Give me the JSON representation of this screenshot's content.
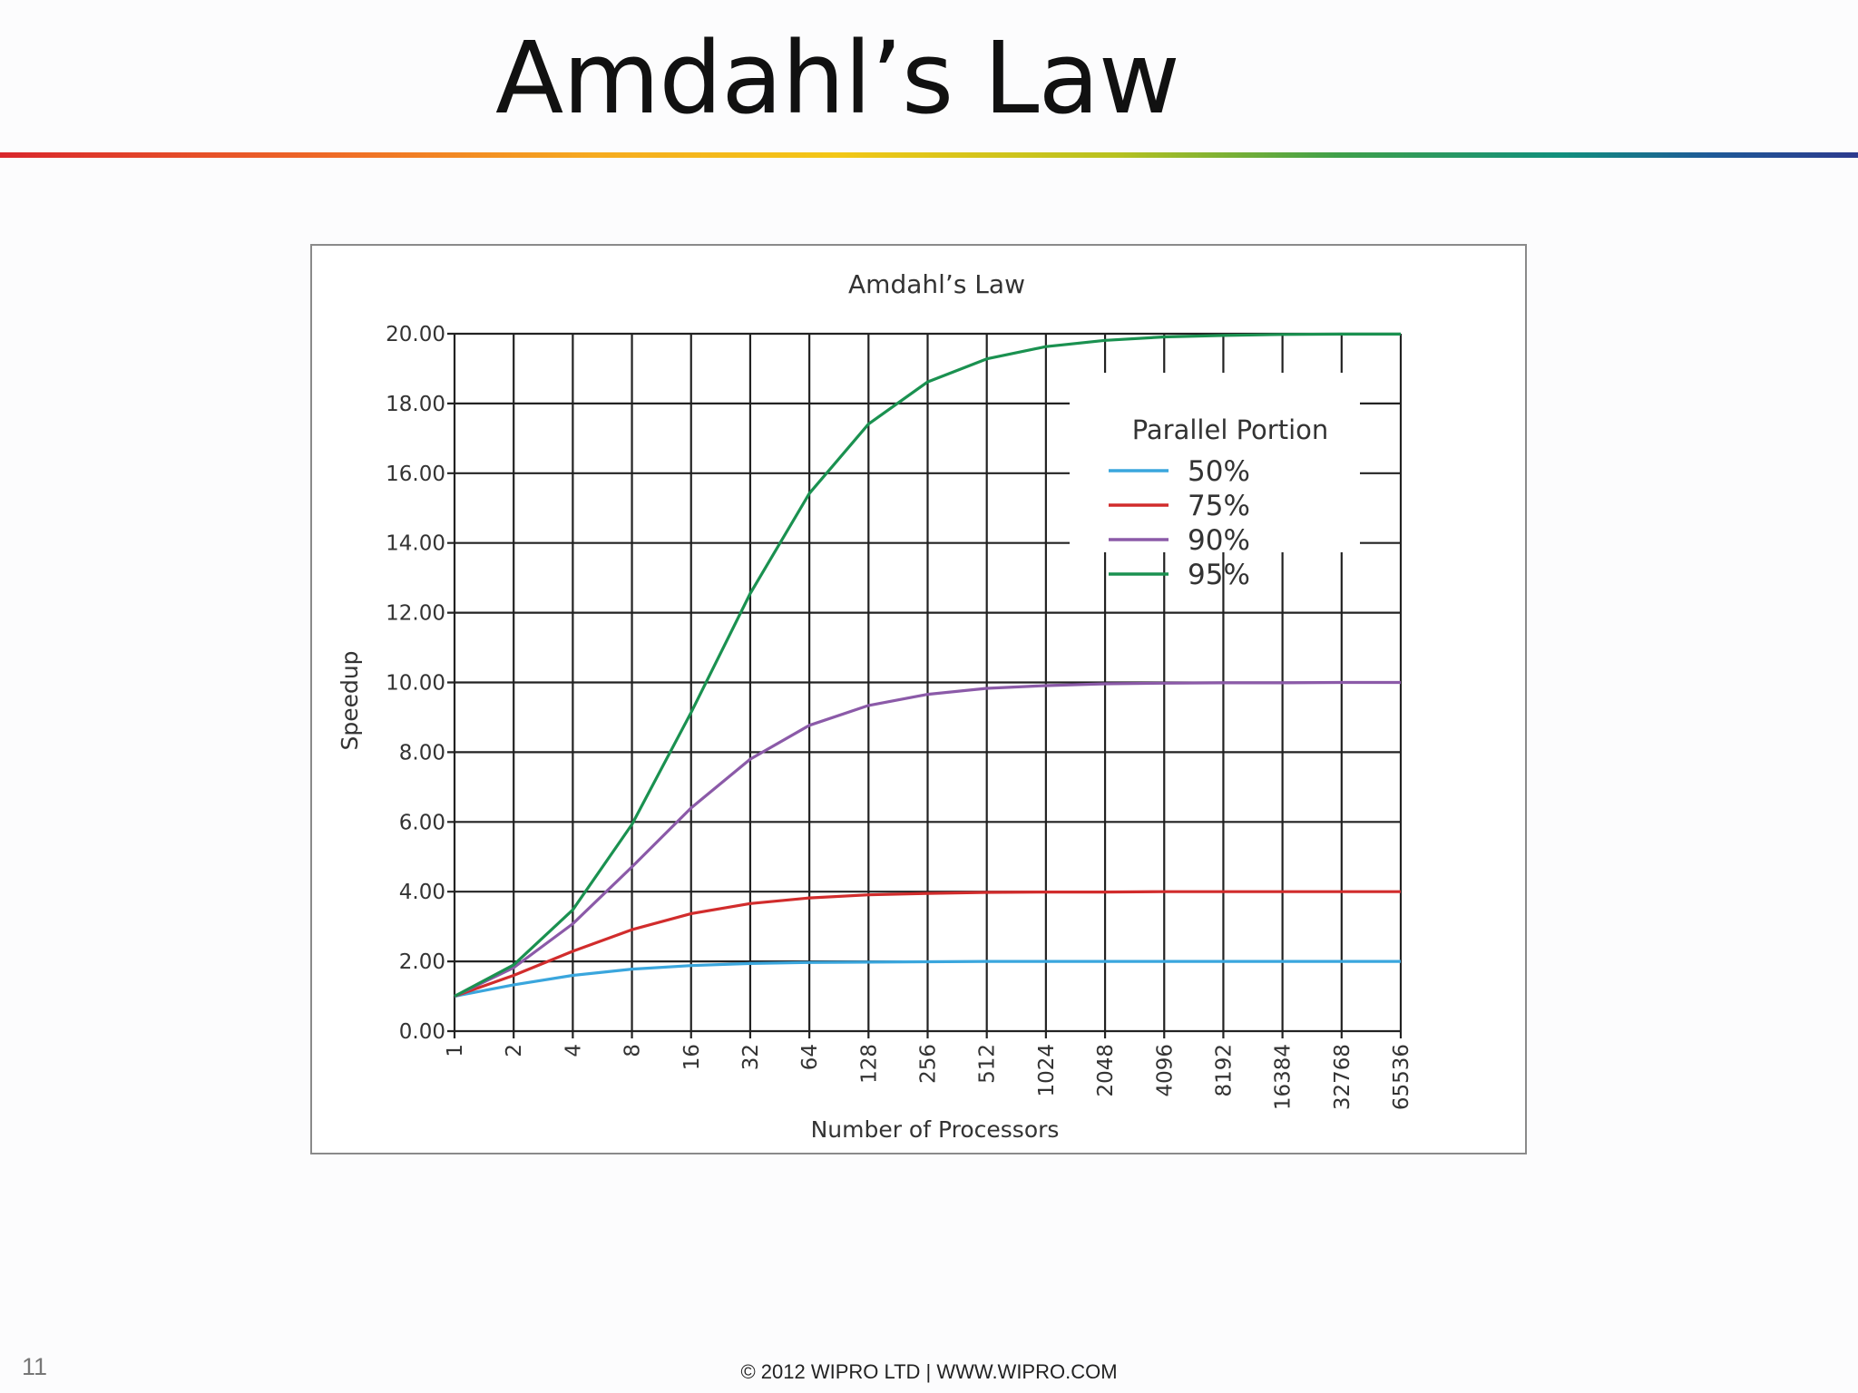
{
  "slide": {
    "title": "Amdahl’s Law",
    "number": "11",
    "footer": "© 2012 WIPRO LTD | WWW.WIPRO.COM"
  },
  "chart_data": {
    "type": "line",
    "title": "Amdahl’s Law",
    "xlabel": "Number of Processors",
    "ylabel": "Speedup",
    "x_scale": "log2",
    "categories": [
      "1",
      "2",
      "4",
      "8",
      "16",
      "32",
      "64",
      "128",
      "256",
      "512",
      "1024",
      "2048",
      "4096",
      "8192",
      "16384",
      "32768",
      "65536"
    ],
    "y_ticks": [
      "0.00",
      "2.00",
      "4.00",
      "6.00",
      "8.00",
      "10.00",
      "12.00",
      "14.00",
      "16.00",
      "18.00",
      "20.00"
    ],
    "ylim": [
      0,
      20
    ],
    "grid": true,
    "legend": {
      "title": "Parallel Portion",
      "position": "top-right"
    },
    "series": [
      {
        "name": "50%",
        "color": "#3aa6dd",
        "values": [
          1.0,
          1.33,
          1.6,
          1.78,
          1.88,
          1.94,
          1.97,
          1.98,
          1.99,
          2.0,
          2.0,
          2.0,
          2.0,
          2.0,
          2.0,
          2.0,
          2.0
        ]
      },
      {
        "name": "75%",
        "color": "#d12c2c",
        "values": [
          1.0,
          1.6,
          2.29,
          2.91,
          3.37,
          3.66,
          3.82,
          3.91,
          3.95,
          3.98,
          3.99,
          3.99,
          4.0,
          4.0,
          4.0,
          4.0,
          4.0
        ]
      },
      {
        "name": "90%",
        "color": "#8b5aa8",
        "values": [
          1.0,
          1.82,
          3.08,
          4.71,
          6.4,
          7.8,
          8.77,
          9.34,
          9.66,
          9.83,
          9.91,
          9.96,
          9.98,
          9.99,
          9.99,
          10.0,
          10.0
        ]
      },
      {
        "name": "95%",
        "color": "#1a9150",
        "values": [
          1.0,
          1.9,
          3.48,
          5.93,
          9.14,
          12.55,
          15.42,
          17.41,
          18.62,
          19.28,
          19.63,
          19.81,
          19.91,
          19.95,
          19.98,
          19.99,
          19.99
        ]
      }
    ]
  }
}
